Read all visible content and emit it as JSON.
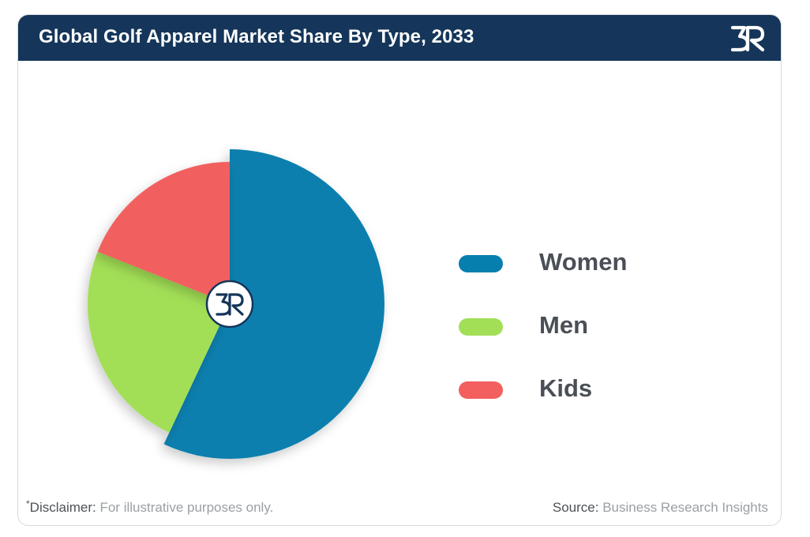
{
  "header": {
    "title": "Global Golf Apparel Market Share By Type, 2033"
  },
  "footer": {
    "disclaimer_mark": "*",
    "disclaimer_label": "Disclaimer:",
    "disclaimer_text": "For illustrative purposes only.",
    "source_label": "Source:",
    "source_text": "Business Research Insights"
  },
  "chart_data": {
    "type": "pie",
    "title": "Global Golf Apparel Market Share By Type, 2033",
    "categories": [
      "Women",
      "Men",
      "Kids"
    ],
    "values": [
      57,
      24,
      19
    ],
    "colors": [
      "#077fae",
      "#a2df57",
      "#f25f5e"
    ],
    "legend_position": "right",
    "center_logo": true
  }
}
